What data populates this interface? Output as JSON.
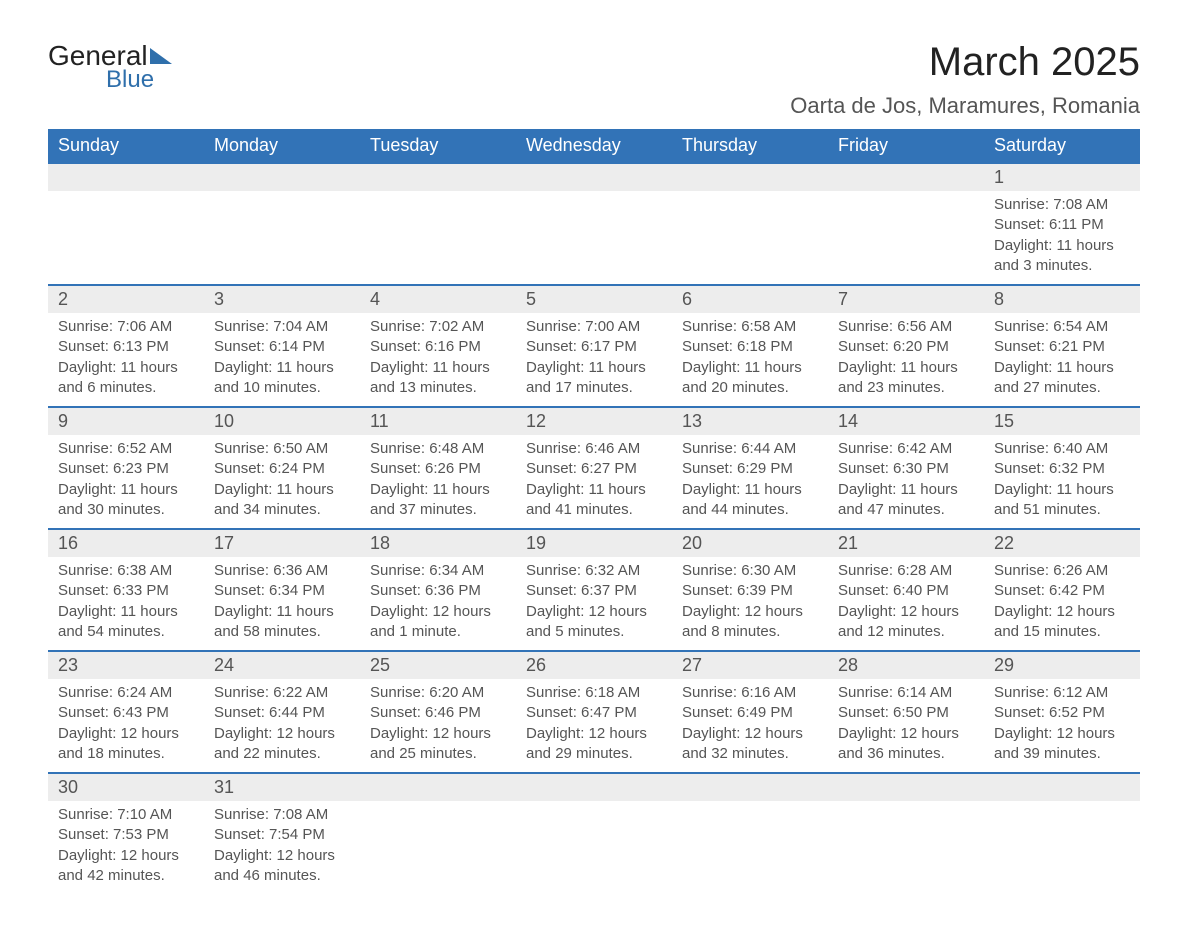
{
  "logo": {
    "text1": "General",
    "text2": "Blue"
  },
  "title": "March 2025",
  "location": "Oarta de Jos, Maramures, Romania",
  "columns": [
    "Sunday",
    "Monday",
    "Tuesday",
    "Wednesday",
    "Thursday",
    "Friday",
    "Saturday"
  ],
  "colors": {
    "header_bg": "#3273b7",
    "header_fg": "#ffffff",
    "daynum_bg": "#ededed",
    "text": "#555555",
    "accent": "#2f6fab"
  },
  "weeks": [
    [
      null,
      null,
      null,
      null,
      null,
      null,
      {
        "n": "1",
        "sunrise": "Sunrise: 7:08 AM",
        "sunset": "Sunset: 6:11 PM",
        "dl1": "Daylight: 11 hours",
        "dl2": "and 3 minutes."
      }
    ],
    [
      {
        "n": "2",
        "sunrise": "Sunrise: 7:06 AM",
        "sunset": "Sunset: 6:13 PM",
        "dl1": "Daylight: 11 hours",
        "dl2": "and 6 minutes."
      },
      {
        "n": "3",
        "sunrise": "Sunrise: 7:04 AM",
        "sunset": "Sunset: 6:14 PM",
        "dl1": "Daylight: 11 hours",
        "dl2": "and 10 minutes."
      },
      {
        "n": "4",
        "sunrise": "Sunrise: 7:02 AM",
        "sunset": "Sunset: 6:16 PM",
        "dl1": "Daylight: 11 hours",
        "dl2": "and 13 minutes."
      },
      {
        "n": "5",
        "sunrise": "Sunrise: 7:00 AM",
        "sunset": "Sunset: 6:17 PM",
        "dl1": "Daylight: 11 hours",
        "dl2": "and 17 minutes."
      },
      {
        "n": "6",
        "sunrise": "Sunrise: 6:58 AM",
        "sunset": "Sunset: 6:18 PM",
        "dl1": "Daylight: 11 hours",
        "dl2": "and 20 minutes."
      },
      {
        "n": "7",
        "sunrise": "Sunrise: 6:56 AM",
        "sunset": "Sunset: 6:20 PM",
        "dl1": "Daylight: 11 hours",
        "dl2": "and 23 minutes."
      },
      {
        "n": "8",
        "sunrise": "Sunrise: 6:54 AM",
        "sunset": "Sunset: 6:21 PM",
        "dl1": "Daylight: 11 hours",
        "dl2": "and 27 minutes."
      }
    ],
    [
      {
        "n": "9",
        "sunrise": "Sunrise: 6:52 AM",
        "sunset": "Sunset: 6:23 PM",
        "dl1": "Daylight: 11 hours",
        "dl2": "and 30 minutes."
      },
      {
        "n": "10",
        "sunrise": "Sunrise: 6:50 AM",
        "sunset": "Sunset: 6:24 PM",
        "dl1": "Daylight: 11 hours",
        "dl2": "and 34 minutes."
      },
      {
        "n": "11",
        "sunrise": "Sunrise: 6:48 AM",
        "sunset": "Sunset: 6:26 PM",
        "dl1": "Daylight: 11 hours",
        "dl2": "and 37 minutes."
      },
      {
        "n": "12",
        "sunrise": "Sunrise: 6:46 AM",
        "sunset": "Sunset: 6:27 PM",
        "dl1": "Daylight: 11 hours",
        "dl2": "and 41 minutes."
      },
      {
        "n": "13",
        "sunrise": "Sunrise: 6:44 AM",
        "sunset": "Sunset: 6:29 PM",
        "dl1": "Daylight: 11 hours",
        "dl2": "and 44 minutes."
      },
      {
        "n": "14",
        "sunrise": "Sunrise: 6:42 AM",
        "sunset": "Sunset: 6:30 PM",
        "dl1": "Daylight: 11 hours",
        "dl2": "and 47 minutes."
      },
      {
        "n": "15",
        "sunrise": "Sunrise: 6:40 AM",
        "sunset": "Sunset: 6:32 PM",
        "dl1": "Daylight: 11 hours",
        "dl2": "and 51 minutes."
      }
    ],
    [
      {
        "n": "16",
        "sunrise": "Sunrise: 6:38 AM",
        "sunset": "Sunset: 6:33 PM",
        "dl1": "Daylight: 11 hours",
        "dl2": "and 54 minutes."
      },
      {
        "n": "17",
        "sunrise": "Sunrise: 6:36 AM",
        "sunset": "Sunset: 6:34 PM",
        "dl1": "Daylight: 11 hours",
        "dl2": "and 58 minutes."
      },
      {
        "n": "18",
        "sunrise": "Sunrise: 6:34 AM",
        "sunset": "Sunset: 6:36 PM",
        "dl1": "Daylight: 12 hours",
        "dl2": "and 1 minute."
      },
      {
        "n": "19",
        "sunrise": "Sunrise: 6:32 AM",
        "sunset": "Sunset: 6:37 PM",
        "dl1": "Daylight: 12 hours",
        "dl2": "and 5 minutes."
      },
      {
        "n": "20",
        "sunrise": "Sunrise: 6:30 AM",
        "sunset": "Sunset: 6:39 PM",
        "dl1": "Daylight: 12 hours",
        "dl2": "and 8 minutes."
      },
      {
        "n": "21",
        "sunrise": "Sunrise: 6:28 AM",
        "sunset": "Sunset: 6:40 PM",
        "dl1": "Daylight: 12 hours",
        "dl2": "and 12 minutes."
      },
      {
        "n": "22",
        "sunrise": "Sunrise: 6:26 AM",
        "sunset": "Sunset: 6:42 PM",
        "dl1": "Daylight: 12 hours",
        "dl2": "and 15 minutes."
      }
    ],
    [
      {
        "n": "23",
        "sunrise": "Sunrise: 6:24 AM",
        "sunset": "Sunset: 6:43 PM",
        "dl1": "Daylight: 12 hours",
        "dl2": "and 18 minutes."
      },
      {
        "n": "24",
        "sunrise": "Sunrise: 6:22 AM",
        "sunset": "Sunset: 6:44 PM",
        "dl1": "Daylight: 12 hours",
        "dl2": "and 22 minutes."
      },
      {
        "n": "25",
        "sunrise": "Sunrise: 6:20 AM",
        "sunset": "Sunset: 6:46 PM",
        "dl1": "Daylight: 12 hours",
        "dl2": "and 25 minutes."
      },
      {
        "n": "26",
        "sunrise": "Sunrise: 6:18 AM",
        "sunset": "Sunset: 6:47 PM",
        "dl1": "Daylight: 12 hours",
        "dl2": "and 29 minutes."
      },
      {
        "n": "27",
        "sunrise": "Sunrise: 6:16 AM",
        "sunset": "Sunset: 6:49 PM",
        "dl1": "Daylight: 12 hours",
        "dl2": "and 32 minutes."
      },
      {
        "n": "28",
        "sunrise": "Sunrise: 6:14 AM",
        "sunset": "Sunset: 6:50 PM",
        "dl1": "Daylight: 12 hours",
        "dl2": "and 36 minutes."
      },
      {
        "n": "29",
        "sunrise": "Sunrise: 6:12 AM",
        "sunset": "Sunset: 6:52 PM",
        "dl1": "Daylight: 12 hours",
        "dl2": "and 39 minutes."
      }
    ],
    [
      {
        "n": "30",
        "sunrise": "Sunrise: 7:10 AM",
        "sunset": "Sunset: 7:53 PM",
        "dl1": "Daylight: 12 hours",
        "dl2": "and 42 minutes."
      },
      {
        "n": "31",
        "sunrise": "Sunrise: 7:08 AM",
        "sunset": "Sunset: 7:54 PM",
        "dl1": "Daylight: 12 hours",
        "dl2": "and 46 minutes."
      },
      null,
      null,
      null,
      null,
      null
    ]
  ]
}
